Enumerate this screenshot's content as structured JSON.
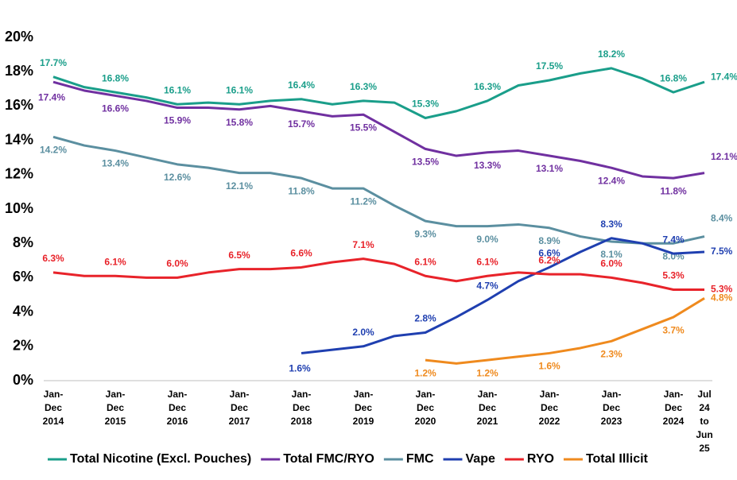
{
  "chart_data": {
    "type": "line",
    "categories": [
      "Jan-\nDec\n2014",
      null,
      "Jan-\nDec\n2015",
      null,
      "Jan-\nDec\n2016",
      null,
      "Jan-\nDec\n2017",
      null,
      "Jan-\nDec\n2018",
      null,
      "Jan-\nDec\n2019",
      null,
      "Jan-\nDec\n2020",
      null,
      "Jan-\nDec\n2021",
      null,
      "Jan-\nDec\n2022",
      null,
      "Jan-\nDec\n2023",
      null,
      "Jan-\nDec\n2024",
      "Jul\n24\nto\nJun\n25"
    ],
    "ylim": [
      0,
      20
    ],
    "yticks": [
      {
        "value": 0,
        "label": "0%"
      },
      {
        "value": 2,
        "label": "2%"
      },
      {
        "value": 4,
        "label": "4%"
      },
      {
        "value": 6,
        "label": "6%"
      },
      {
        "value": 8,
        "label": "8%"
      },
      {
        "value": 10,
        "label": "10%"
      },
      {
        "value": 12,
        "label": "12%"
      },
      {
        "value": 14,
        "label": "14%"
      },
      {
        "value": 16,
        "label": "16%"
      },
      {
        "value": 18,
        "label": "18%"
      },
      {
        "value": 20,
        "label": "20%"
      }
    ],
    "grid": false,
    "legend": "bottom",
    "series": [
      {
        "name": "Total Nicotine (Excl. Pouches)",
        "color": "#1a9e8a",
        "values": [
          17.7,
          17.1,
          16.8,
          16.5,
          16.1,
          16.2,
          16.1,
          16.3,
          16.4,
          16.1,
          16.3,
          16.2,
          15.3,
          15.7,
          16.3,
          17.2,
          17.5,
          17.9,
          18.2,
          17.6,
          16.8,
          17.4
        ],
        "value_labels": [
          "17.7%",
          null,
          "16.8%",
          null,
          "16.1%",
          null,
          "16.1%",
          null,
          "16.4%",
          null,
          "16.3%",
          null,
          "15.3%",
          null,
          "16.3%",
          null,
          "17.5%",
          null,
          "18.2%",
          null,
          "16.8%",
          "17.4%"
        ]
      },
      {
        "name": "Total FMC/RYO",
        "color": "#7030a0",
        "values": [
          17.4,
          16.9,
          16.6,
          16.3,
          15.9,
          15.9,
          15.8,
          16.0,
          15.7,
          15.4,
          15.5,
          14.5,
          13.5,
          13.1,
          13.3,
          13.4,
          13.1,
          12.8,
          12.4,
          11.9,
          11.8,
          12.1
        ],
        "value_labels": [
          "17.4%",
          null,
          "16.6%",
          null,
          "15.9%",
          null,
          "15.8%",
          null,
          "15.7%",
          null,
          "15.5%",
          null,
          "13.5%",
          null,
          "13.3%",
          null,
          "13.1%",
          null,
          "12.4%",
          null,
          "11.8%",
          "12.1%"
        ]
      },
      {
        "name": "FMC",
        "color": "#5b8fa0",
        "values": [
          14.2,
          13.7,
          13.4,
          13.0,
          12.6,
          12.4,
          12.1,
          12.1,
          11.8,
          11.2,
          11.2,
          10.2,
          9.3,
          9.0,
          9.0,
          9.1,
          8.9,
          8.4,
          8.1,
          8.0,
          8.0,
          8.4
        ],
        "value_labels": [
          "14.2%",
          null,
          "13.4%",
          null,
          "12.6%",
          null,
          "12.1%",
          null,
          "11.8%",
          null,
          "11.2%",
          null,
          "9.3%",
          null,
          "9.0%",
          null,
          "8.9%",
          null,
          "8.1%",
          null,
          "8.0%",
          "8.4%"
        ]
      },
      {
        "name": "Vape",
        "color": "#1f3fb0",
        "values": [
          null,
          null,
          null,
          null,
          null,
          null,
          null,
          null,
          1.6,
          1.8,
          2.0,
          2.6,
          2.8,
          3.7,
          4.7,
          5.8,
          6.6,
          7.5,
          8.3,
          8.0,
          7.4,
          7.5
        ],
        "value_labels": [
          null,
          null,
          null,
          null,
          null,
          null,
          null,
          null,
          "1.6%",
          null,
          "2.0%",
          null,
          "2.8%",
          null,
          "4.7%",
          null,
          "6.6%",
          null,
          "8.3%",
          null,
          "7.4%",
          "7.5%"
        ]
      },
      {
        "name": "RYO",
        "color": "#e8232a",
        "values": [
          6.3,
          6.1,
          6.1,
          6.0,
          6.0,
          6.3,
          6.5,
          6.5,
          6.6,
          6.9,
          7.1,
          6.8,
          6.1,
          5.8,
          6.1,
          6.3,
          6.2,
          6.2,
          6.0,
          5.7,
          5.3,
          5.3
        ],
        "value_labels": [
          "6.3%",
          null,
          "6.1%",
          null,
          "6.0%",
          null,
          "6.5%",
          null,
          "6.6%",
          null,
          "7.1%",
          null,
          "6.1%",
          null,
          "6.1%",
          null,
          "6.2%",
          null,
          "6.0%",
          null,
          "5.3%",
          "5.3%"
        ]
      },
      {
        "name": "Total Illicit",
        "color": "#ef8a1e",
        "values": [
          null,
          null,
          null,
          null,
          null,
          null,
          null,
          null,
          null,
          null,
          null,
          null,
          1.2,
          1.0,
          1.2,
          1.4,
          1.6,
          1.9,
          2.3,
          3.0,
          3.7,
          4.8
        ],
        "value_labels": [
          null,
          null,
          null,
          null,
          null,
          null,
          null,
          null,
          null,
          null,
          null,
          null,
          "1.2%",
          null,
          "1.2%",
          null,
          "1.6%",
          null,
          "2.3%",
          null,
          "3.7%",
          "4.8%"
        ]
      }
    ]
  }
}
